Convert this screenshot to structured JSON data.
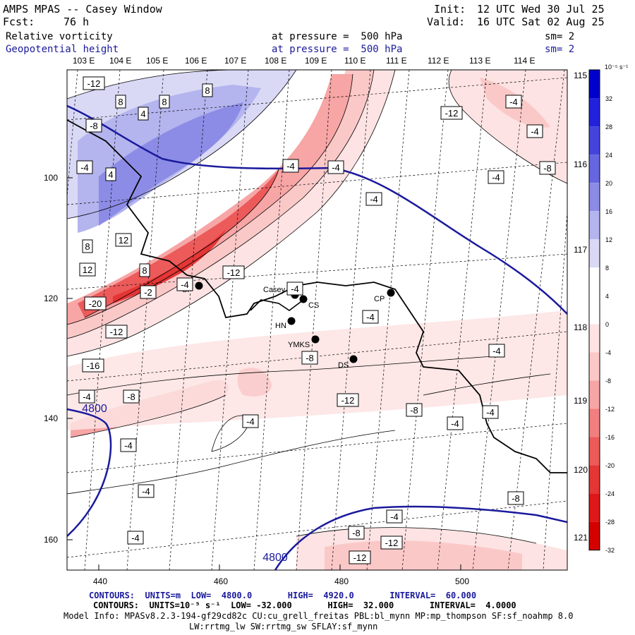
{
  "header": {
    "app": "AMPS MPAS -- Casey Window",
    "fcst_label": "Fcst:",
    "fcst_value": "76 h",
    "init_label": "Init:",
    "init_value": "12 UTC Wed 30 Jul 25",
    "valid_label": "Valid:",
    "valid_value": "16 UTC Sat 02 Aug 25",
    "field1": {
      "name": "Relative vorticity",
      "level": "at pressure =  500 hPa",
      "sm": "sm= 2"
    },
    "field2": {
      "name": "Geopotential height",
      "level": "at pressure =  500 hPa",
      "sm": "sm= 2"
    }
  },
  "lon_top": [
    "103 E",
    "104 E",
    "105 E",
    "106 E",
    "107 E",
    "108 E",
    "109 E",
    "110 E",
    "111 E",
    "112 E",
    "113 E",
    "114 E"
  ],
  "lat_right": [
    "115 E",
    "116 E",
    "117 E",
    "118 E",
    "119 E",
    "120 E",
    "121 E"
  ],
  "x_ticks": [
    "440",
    "460",
    "480",
    "500"
  ],
  "y_ticks": [
    "100",
    "120",
    "140",
    "160"
  ],
  "colorbar": {
    "unit": "10⁻⁵ s⁻¹",
    "labels": [
      "32",
      "28",
      "24",
      "20",
      "16",
      "12",
      "8",
      "4",
      "0",
      "-4",
      "-8",
      "-12",
      "-16",
      "-20",
      "-24",
      "-28",
      "-32"
    ],
    "colors": [
      "#0000cc",
      "#2222dd",
      "#4444dd",
      "#6666e0",
      "#8c8ce6",
      "#b4b4ee",
      "#d9d9f6",
      "#ffffff",
      "#ffffff",
      "#fde3e3",
      "#fbc8c8",
      "#f7a5a5",
      "#f27f7f",
      "#ec5a5a",
      "#e53535",
      "#de1818",
      "#d40000"
    ]
  },
  "stations": [
    {
      "label": "Casey"
    },
    {
      "label": "CS"
    },
    {
      "label": "CP"
    },
    {
      "label": "HN"
    },
    {
      "label": "YMKS"
    },
    {
      "label": "DS"
    },
    {
      "label": "SP"
    }
  ],
  "contour_labels": [
    "-12",
    "8",
    "8",
    "8",
    "4",
    "-8",
    "-4",
    "4",
    "8",
    "12",
    "12",
    "8",
    "-4",
    "-2",
    "-20",
    "-12",
    "-12",
    "-16",
    "-4",
    "-8",
    "-12",
    "-4",
    "-4",
    "-4",
    "-4",
    "-4",
    "-8",
    "-4",
    "-4",
    "-8",
    "-12",
    "-8",
    "-4",
    "-4",
    "-4",
    "-12",
    "-8",
    "-12",
    "-4",
    "-4",
    "-4",
    "-4",
    "-8",
    "-4",
    "-4"
  ],
  "height_labels": [
    "4800",
    "4800"
  ],
  "footer": {
    "line1": "CONTOURS:  UNITS=m  LOW=  4800.0       HIGH=  4920.0       INTERVAL=  60.000",
    "line2": "CONTOURS:  UNITS=10⁻⁵ s⁻¹  LOW= -32.000       HIGH=  32.000       INTERVAL=  4.0000",
    "line3": "Model Info: MPASv8.2.3-194-gf29cd82c CU:cu_grell_freitas PBL:bl_mynn MP:mp_thompson SF:sf_noahmp 8.0",
    "line4": "LW:rrtmg_lw SW:rrtmg_sw SFLAY:sf_mynn"
  }
}
